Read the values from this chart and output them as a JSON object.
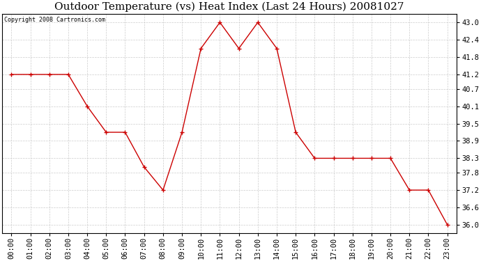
{
  "title": "Outdoor Temperature (vs) Heat Index (Last 24 Hours) 20081027",
  "copyright": "Copyright 2008 Cartronics.com",
  "x_labels": [
    "00:00",
    "01:00",
    "02:00",
    "03:00",
    "04:00",
    "05:00",
    "06:00",
    "07:00",
    "08:00",
    "09:00",
    "10:00",
    "11:00",
    "12:00",
    "13:00",
    "14:00",
    "15:00",
    "16:00",
    "17:00",
    "18:00",
    "19:00",
    "20:00",
    "21:00",
    "22:00",
    "23:00"
  ],
  "y_values": [
    41.2,
    41.2,
    41.2,
    41.2,
    40.1,
    39.2,
    39.2,
    38.0,
    37.2,
    39.2,
    42.1,
    43.0,
    42.1,
    43.0,
    42.1,
    39.2,
    38.3,
    38.3,
    38.3,
    38.3,
    38.3,
    37.2,
    37.2,
    36.0
  ],
  "line_color": "#cc0000",
  "marker": "+",
  "marker_size": 5,
  "marker_color": "#cc0000",
  "bg_color": "#ffffff",
  "grid_color": "#cccccc",
  "ylim_min": 35.7,
  "ylim_max": 43.3,
  "yticks": [
    36.0,
    36.6,
    37.2,
    37.8,
    38.3,
    38.9,
    39.5,
    40.1,
    40.7,
    41.2,
    41.8,
    42.4,
    43.0
  ],
  "title_fontsize": 11,
  "copyright_fontsize": 6,
  "tick_fontsize": 7.5
}
